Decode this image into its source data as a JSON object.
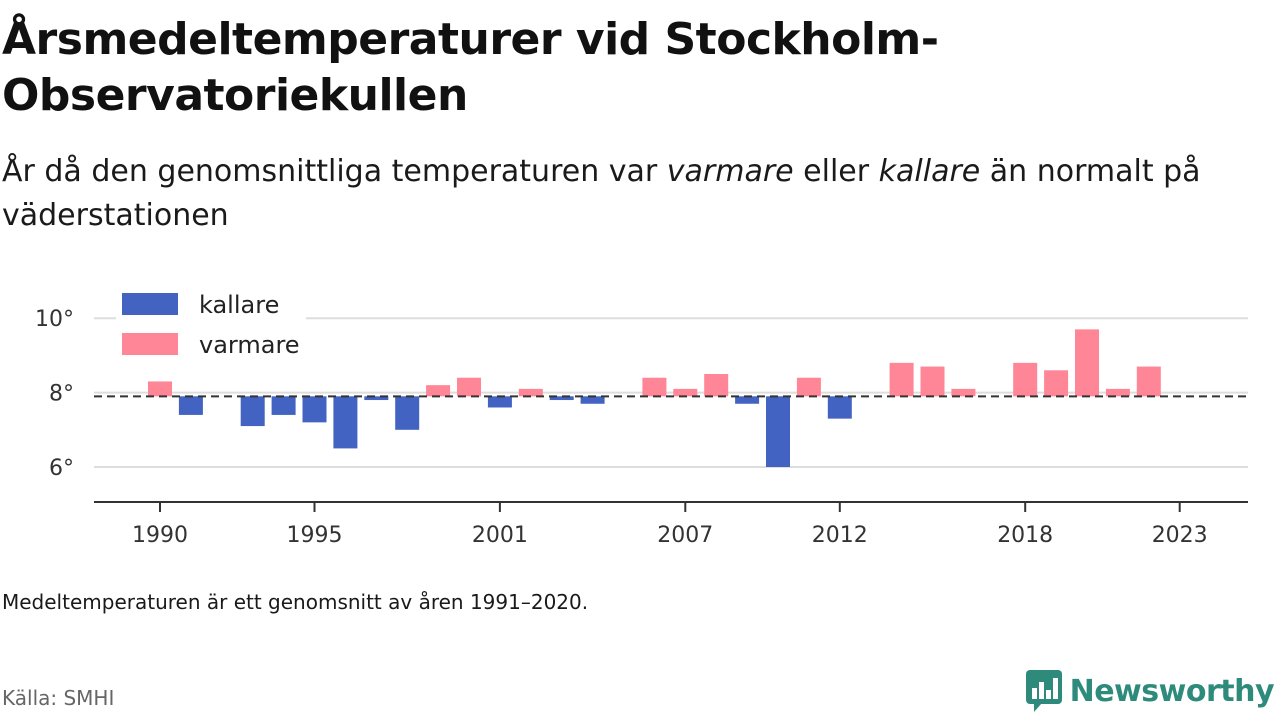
{
  "title": "Årsmedeltemperaturer vid Stockholm-Observatoriekullen",
  "subtitle": {
    "part1": "År då den genomsnittliga temperaturen var ",
    "warm_word": "varmare",
    "part2": " eller ",
    "cold_word": "kallare",
    "part3": " än normalt på väderstationen"
  },
  "note": "Medeltemperaturen är ett genomsnitt av åren 1991–2020.",
  "source": "Källa: SMHI",
  "brand": {
    "name": "Newsworthy",
    "icon": "bar-chart-speech-bubble-icon",
    "color": "#2e8b7c"
  },
  "colors": {
    "kallare": "#4263c2",
    "varmare": "#ff8696",
    "baseline": "#333333",
    "grid": "#dddddd",
    "axis": "#333333"
  },
  "chart_data": {
    "type": "bar",
    "baseline": 7.9,
    "ylim": [
      5.1,
      10.5
    ],
    "yticks": [
      6,
      8,
      10
    ],
    "ytick_labels": [
      "6°",
      "8°",
      "10°"
    ],
    "xlim": [
      1989,
      1991.4,
      2026
    ],
    "xticks": [
      1990,
      1995,
      2001,
      2007,
      2012,
      2018,
      2023
    ],
    "xtick_labels": [
      "1990",
      "1995",
      "2001",
      "2007",
      "2012",
      "2018",
      "2023"
    ],
    "legend": {
      "position": "top-left",
      "items": [
        {
          "name": "kallare",
          "color": "#4263c2"
        },
        {
          "name": "varmare",
          "color": "#ff8696"
        }
      ]
    },
    "x": [
      1990,
      1991,
      1992,
      1993,
      1994,
      1995,
      1996,
      1997,
      1998,
      1999,
      2000,
      2001,
      2002,
      2003,
      2004,
      2005,
      2006,
      2007,
      2008,
      2009,
      2010,
      2011,
      2012,
      2013,
      2014,
      2015,
      2016,
      2017,
      2018,
      2019,
      2020,
      2021,
      2022,
      2023
    ],
    "values": [
      8.3,
      7.4,
      7.9,
      7.1,
      7.4,
      7.2,
      6.5,
      7.8,
      7.0,
      8.2,
      8.4,
      7.6,
      8.1,
      7.8,
      7.7,
      7.9,
      8.4,
      8.1,
      8.5,
      7.7,
      6.0,
      8.4,
      7.3,
      7.9,
      8.8,
      8.7,
      8.1,
      7.9,
      8.8,
      8.6,
      9.7,
      8.1,
      8.7,
      7.9
    ]
  }
}
